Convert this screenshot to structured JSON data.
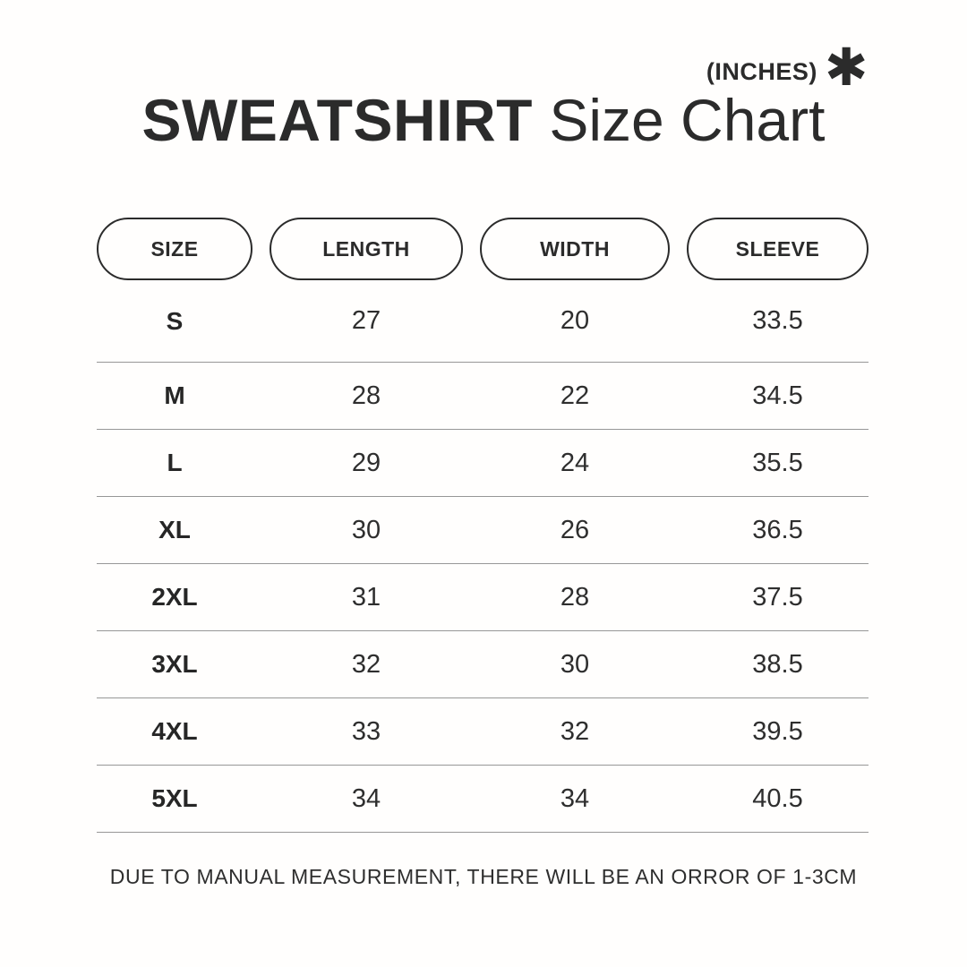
{
  "header": {
    "units_label": "(INCHES)",
    "asterisk_icon": "✱",
    "title_bold": "SWEATSHIRT",
    "title_regular": "Size Chart"
  },
  "table": {
    "columns": [
      "SIZE",
      "LENGTH",
      "WIDTH",
      "SLEEVE"
    ],
    "rows": [
      {
        "size": "S",
        "length": "27",
        "width": "20",
        "sleeve": "33.5"
      },
      {
        "size": "M",
        "length": "28",
        "width": "22",
        "sleeve": "34.5"
      },
      {
        "size": "L",
        "length": "29",
        "width": "24",
        "sleeve": "35.5"
      },
      {
        "size": "XL",
        "length": "30",
        "width": "26",
        "sleeve": "36.5"
      },
      {
        "size": "2XL",
        "length": "31",
        "width": "28",
        "sleeve": "37.5"
      },
      {
        "size": "3XL",
        "length": "32",
        "width": "30",
        "sleeve": "38.5"
      },
      {
        "size": "4XL",
        "length": "33",
        "width": "32",
        "sleeve": "39.5"
      },
      {
        "size": "5XL",
        "length": "34",
        "width": "34",
        "sleeve": "40.5"
      }
    ]
  },
  "footer": {
    "note": "DUE TO MANUAL MEASUREMENT, THERE WILL BE AN ORROR OF 1-3CM"
  },
  "colors": {
    "text": "#2b2b2b",
    "separator": "#979797",
    "background": "#fffefd"
  },
  "chart_data": {
    "type": "table",
    "title": "SWEATSHIRT Size Chart",
    "units": "(INCHES)",
    "columns": [
      "SIZE",
      "LENGTH",
      "WIDTH",
      "SLEEVE"
    ],
    "rows": [
      [
        "S",
        27,
        20,
        33.5
      ],
      [
        "M",
        28,
        22,
        34.5
      ],
      [
        "L",
        29,
        24,
        35.5
      ],
      [
        "XL",
        30,
        26,
        36.5
      ],
      [
        "2XL",
        31,
        28,
        37.5
      ],
      [
        "3XL",
        32,
        30,
        38.5
      ],
      [
        "4XL",
        33,
        32,
        39.5
      ],
      [
        "5XL",
        34,
        34,
        40.5
      ]
    ],
    "note": "DUE TO MANUAL MEASUREMENT, THERE WILL BE AN ORROR OF 1-3CM"
  }
}
